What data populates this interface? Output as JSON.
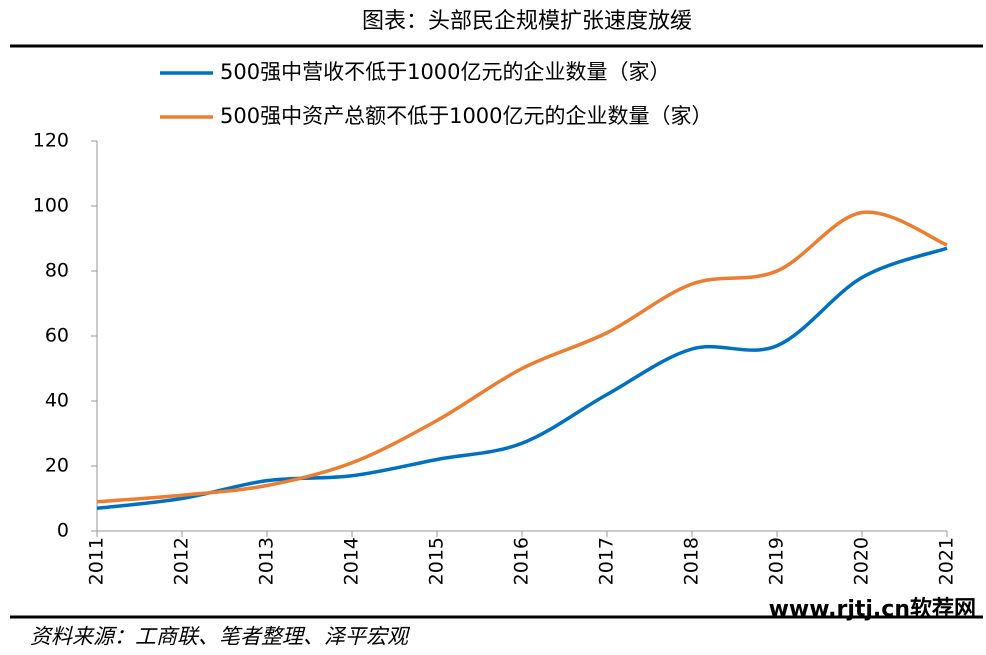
{
  "chart_data": {
    "type": "line",
    "title": "图表：头部民企规模扩张速度放缓",
    "categories": [
      "2011",
      "2012",
      "2013",
      "2014",
      "2015",
      "2016",
      "2017",
      "2018",
      "2019",
      "2020",
      "2021"
    ],
    "series": [
      {
        "name": "500强中营收不低于1000亿元的企业数量（家）",
        "color": "#0070c0",
        "values": [
          7,
          10,
          15.5,
          17,
          22,
          27,
          42,
          56,
          57,
          78,
          87
        ]
      },
      {
        "name": "500强中资产总额不低于1000亿元的企业数量（家）",
        "color": "#ed7d31",
        "values": [
          9,
          11,
          14,
          21,
          34,
          50,
          61,
          76,
          80,
          98,
          88
        ]
      }
    ],
    "ylim": [
      0,
      120
    ],
    "yticks": [
      0,
      20,
      40,
      60,
      80,
      100,
      120
    ],
    "grid": false,
    "source": "资料来源：工商联、笔者整理、泽平宏观",
    "watermark": "www.rjtj.cn软荐网"
  }
}
